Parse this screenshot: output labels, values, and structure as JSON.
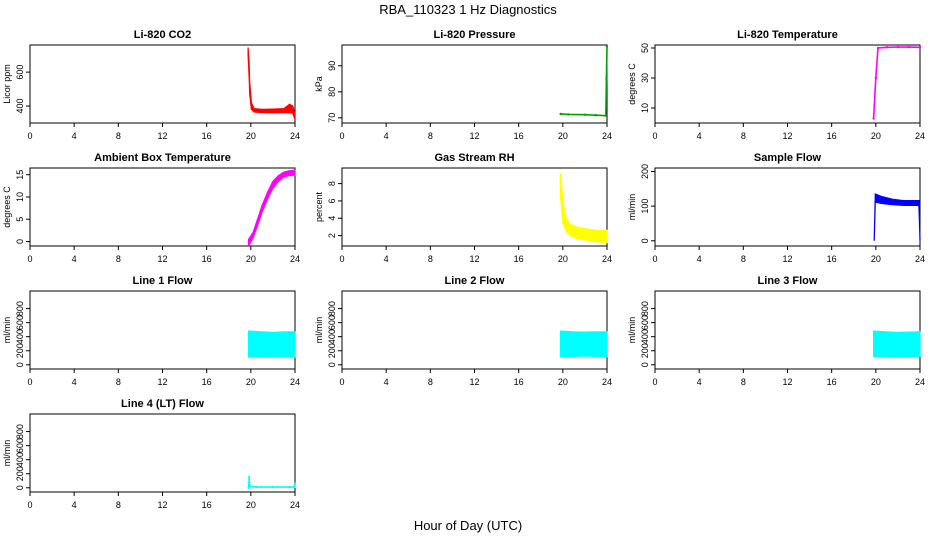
{
  "title": "RBA_110323  1 Hz Diagnostics",
  "xlabel": "Hour of Day (UTC)",
  "chart_data": [
    {
      "type": "line",
      "title": "Li-820 CO2",
      "ylabel": "Licor ppm",
      "color": "#ff0000",
      "xlim": [
        0,
        24
      ],
      "ylim": [
        300,
        760
      ],
      "xticks": [
        0,
        4,
        8,
        12,
        16,
        20,
        24
      ],
      "yticks": [
        400,
        600
      ],
      "series": [
        {
          "name": "CO2",
          "style": "band",
          "x": [
            19.75,
            19.85,
            19.9,
            20.05,
            20.3,
            21.0,
            22.0,
            23.0,
            23.5,
            23.8,
            24.0
          ],
          "lo": [
            700,
            560,
            470,
            380,
            365,
            362,
            360,
            362,
            360,
            358,
            320
          ],
          "hi": [
            745,
            640,
            540,
            420,
            385,
            380,
            382,
            385,
            410,
            400,
            350
          ]
        }
      ]
    },
    {
      "type": "line",
      "title": "Li-820 Pressure",
      "ylabel": "kPa",
      "color": "#00a000",
      "xlim": [
        0,
        24
      ],
      "ylim": [
        68,
        98
      ],
      "xticks": [
        0,
        4,
        8,
        12,
        16,
        20,
        24
      ],
      "yticks": [
        70,
        80,
        90
      ],
      "series": [
        {
          "name": "Pressure",
          "style": "line",
          "x": [
            19.8,
            20.5,
            22.0,
            23.0,
            23.9,
            23.95,
            24.0
          ],
          "y": [
            71.5,
            71.3,
            71.2,
            71.0,
            70.8,
            85.0,
            97.5
          ]
        }
      ]
    },
    {
      "type": "line",
      "title": "Li-820 Temperature",
      "ylabel": "degrees C",
      "color": "#ff00ff",
      "xlim": [
        0,
        24
      ],
      "ylim": [
        0,
        52
      ],
      "xticks": [
        0,
        4,
        8,
        12,
        16,
        20,
        24
      ],
      "yticks": [
        10,
        30,
        50
      ],
      "series": [
        {
          "name": "Temperature",
          "style": "line",
          "x": [
            19.8,
            20.0,
            20.2,
            21.0,
            22.0,
            23.0,
            24.0
          ],
          "y": [
            3,
            30,
            50,
            50.5,
            50.6,
            50.6,
            50.5
          ]
        }
      ]
    },
    {
      "type": "line",
      "title": "Ambient Box Temperature",
      "ylabel": "degrees C",
      "color": "#ff00ff",
      "xlim": [
        0,
        24
      ],
      "ylim": [
        -1,
        16.5
      ],
      "xticks": [
        0,
        4,
        8,
        12,
        16,
        20,
        24
      ],
      "yticks": [
        0,
        5,
        10,
        15
      ],
      "series": [
        {
          "name": "Box temperature",
          "style": "band",
          "x": [
            19.8,
            20.2,
            20.6,
            21.0,
            21.5,
            22.0,
            22.5,
            23.0,
            23.5,
            24.0
          ],
          "lo": [
            -1.0,
            0.8,
            3.5,
            6.5,
            9.5,
            12.0,
            13.5,
            14.5,
            14.8,
            14.9
          ],
          "hi": [
            0.5,
            2.0,
            5.0,
            8.0,
            11.0,
            13.5,
            14.8,
            15.6,
            15.9,
            16.0
          ]
        }
      ]
    },
    {
      "type": "line",
      "title": "Gas Stream RH",
      "ylabel": "percent",
      "color": "#ffff00",
      "xlim": [
        0,
        24
      ],
      "ylim": [
        0.8,
        9.8
      ],
      "xticks": [
        0,
        4,
        8,
        12,
        16,
        20,
        24
      ],
      "yticks": [
        2,
        4,
        6,
        8
      ],
      "series": [
        {
          "name": "RH",
          "style": "band",
          "x": [
            19.8,
            20.0,
            20.3,
            20.7,
            21.2,
            22.0,
            23.0,
            24.0
          ],
          "lo": [
            6.5,
            3.5,
            2.5,
            2.0,
            1.7,
            1.5,
            1.3,
            1.2
          ],
          "hi": [
            9.2,
            6.0,
            4.0,
            3.3,
            3.0,
            2.8,
            2.6,
            2.6
          ]
        }
      ]
    },
    {
      "type": "line",
      "title": "Sample Flow",
      "ylabel": "ml/min",
      "color": "#0000ff",
      "xlim": [
        0,
        24
      ],
      "ylim": [
        -15,
        210
      ],
      "xticks": [
        0,
        4,
        8,
        12,
        16,
        20,
        24
      ],
      "yticks": [
        0,
        100,
        200
      ],
      "series": [
        {
          "name": "Sample flow",
          "style": "band",
          "x": [
            19.85,
            19.95,
            20.5,
            21.5,
            22.5,
            23.5,
            23.9,
            24.0
          ],
          "lo": [
            0,
            112,
            108,
            104,
            102,
            102,
            102,
            0
          ],
          "hi": [
            5,
            135,
            128,
            120,
            116,
            116,
            116,
            5
          ]
        }
      ]
    },
    {
      "type": "line",
      "title": "Line 1 Flow",
      "ylabel": "ml/min",
      "color": "#00ffff",
      "xlim": [
        0,
        24
      ],
      "ylim": [
        -60,
        1050
      ],
      "xticks": [
        0,
        4,
        8,
        12,
        16,
        20,
        24
      ],
      "yticks": [
        0,
        200,
        400,
        600,
        800
      ],
      "series": [
        {
          "name": "Line 1",
          "style": "band",
          "x": [
            19.8,
            21.0,
            22.0,
            23.0,
            24.0
          ],
          "lo": [
            110,
            115,
            120,
            115,
            110
          ],
          "hi": [
            480,
            470,
            460,
            470,
            470
          ]
        }
      ]
    },
    {
      "type": "line",
      "title": "Line 2 Flow",
      "ylabel": "ml/min",
      "color": "#00ffff",
      "xlim": [
        0,
        24
      ],
      "ylim": [
        -60,
        1050
      ],
      "xticks": [
        0,
        4,
        8,
        12,
        16,
        20,
        24
      ],
      "yticks": [
        0,
        200,
        400,
        600,
        800
      ],
      "series": [
        {
          "name": "Line 2",
          "style": "band",
          "x": [
            19.8,
            21.0,
            22.0,
            23.0,
            24.0
          ],
          "lo": [
            120,
            120,
            125,
            120,
            115
          ],
          "hi": [
            480,
            470,
            465,
            470,
            470
          ]
        }
      ]
    },
    {
      "type": "line",
      "title": "Line 3 Flow",
      "ylabel": "ml/min",
      "color": "#00ffff",
      "xlim": [
        0,
        24
      ],
      "ylim": [
        -60,
        1050
      ],
      "xticks": [
        0,
        4,
        8,
        12,
        16,
        20,
        24
      ],
      "yticks": [
        0,
        200,
        400,
        600,
        800
      ],
      "series": [
        {
          "name": "Line 3",
          "style": "band",
          "x": [
            19.8,
            21.0,
            22.0,
            23.0,
            24.0
          ],
          "lo": [
            120,
            115,
            110,
            115,
            120
          ],
          "hi": [
            480,
            470,
            460,
            465,
            470
          ]
        }
      ]
    },
    {
      "type": "line",
      "title": "Line 4 (LT) Flow",
      "ylabel": "ml/min",
      "color": "#00ffff",
      "xlim": [
        0,
        24
      ],
      "ylim": [
        -60,
        1050
      ],
      "xticks": [
        0,
        4,
        8,
        12,
        16,
        20,
        24
      ],
      "yticks": [
        0,
        200,
        400,
        600,
        800
      ],
      "series": [
        {
          "name": "Line 4",
          "style": "line",
          "x": [
            19.8,
            19.85,
            19.9,
            20.5,
            22.0,
            23.5,
            23.95,
            24.0
          ],
          "y": [
            0,
            150,
            20,
            10,
            10,
            10,
            10,
            60
          ]
        }
      ]
    }
  ]
}
